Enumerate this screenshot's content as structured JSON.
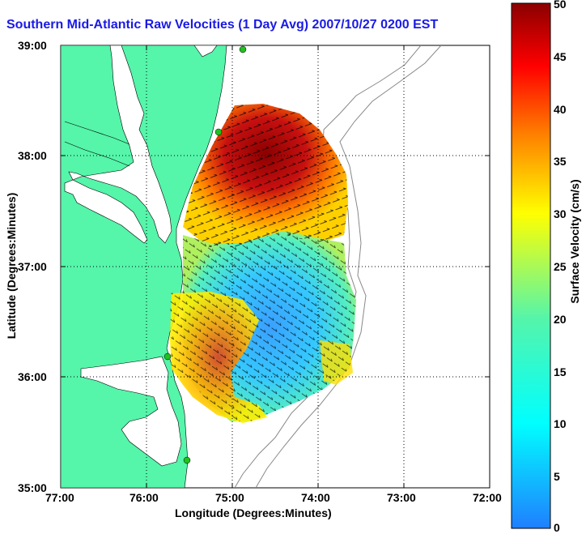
{
  "title": "Southern Mid-Atlantic Raw Velocities (1 Day Avg) 2007/10/27 0200 EST",
  "xlabel": "Longitude (Degrees:Minutes)",
  "ylabel": "Latitude (Degrees:Minutes)",
  "xticks": [
    "77:00",
    "76:00",
    "75:00",
    "74:00",
    "73:00",
    "72:00"
  ],
  "yticks": [
    "39:00",
    "38:00",
    "37:00",
    "36:00",
    "35:00"
  ],
  "colorbar": {
    "label": "Surface Velocity (cm/s)",
    "ticks": [
      "50",
      "45",
      "40",
      "35",
      "30",
      "25",
      "20",
      "15",
      "10",
      "5",
      "0"
    ],
    "range": [
      0,
      50
    ]
  },
  "colors": {
    "land": "#55f5aa",
    "ocean": "#ffffff",
    "title": "#1a1ae6",
    "station": "#22c020",
    "high": "#8b0000",
    "low": "#2080ff"
  },
  "map_extent": {
    "lon": [
      -77,
      -72
    ],
    "lat": [
      35,
      39
    ]
  }
}
